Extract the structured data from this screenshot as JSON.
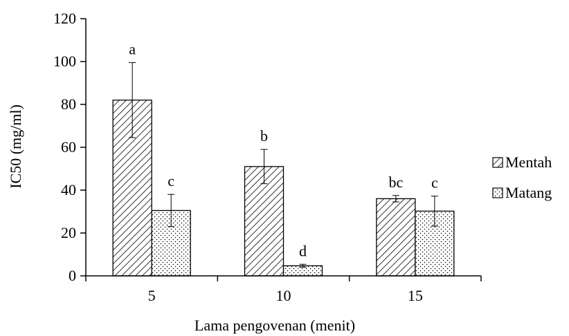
{
  "chart_data": {
    "type": "bar",
    "xlabel": "Lama pengovenan (menit)",
    "ylabel": "IC50 (mg/ml)",
    "categories": [
      "5",
      "10",
      "15"
    ],
    "ylim": [
      0,
      120
    ],
    "yticks": [
      0,
      20,
      40,
      60,
      80,
      100,
      120
    ],
    "grid": false,
    "legend_position": "right",
    "series": [
      {
        "name": "Mentah",
        "pattern": "diagonal-hatch",
        "values": [
          82,
          51,
          36
        ],
        "error": [
          17.5,
          8,
          1.5
        ],
        "labels": [
          "a",
          "b",
          "bc"
        ]
      },
      {
        "name": "Matang",
        "pattern": "dots",
        "values": [
          30.5,
          4.7,
          30.2
        ],
        "error": [
          7.5,
          0.7,
          7
        ],
        "labels": [
          "c",
          "d",
          "c"
        ]
      }
    ]
  }
}
